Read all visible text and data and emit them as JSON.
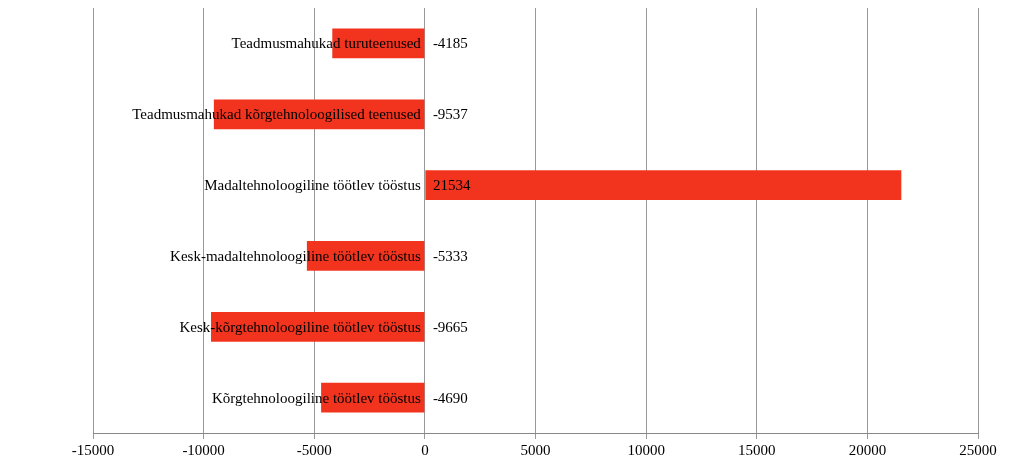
{
  "chart_data": {
    "type": "bar",
    "orientation": "horizontal",
    "categories": [
      "Teadmusmahukad turuteenused",
      "Teadmusmahukad kõrgtehnoloogilised teenused",
      "Madaltehnoloogiline töötlev tööstus",
      "Kesk-madaltehnoloogiline töötlev tööstus",
      "Kesk-kõrgtehnoloogiline töötlev tööstus",
      "Kõrgtehnoloogiline töötlev tööstus"
    ],
    "values": [
      -4185,
      -9537,
      21534,
      -5333,
      -9665,
      -4690
    ],
    "color": "#f2341f",
    "xlim": [
      -15000,
      25000
    ],
    "xticks": [
      -15000,
      -10000,
      -5000,
      0,
      5000,
      10000,
      15000,
      20000,
      25000
    ],
    "grid": "x",
    "data_labels": true
  }
}
